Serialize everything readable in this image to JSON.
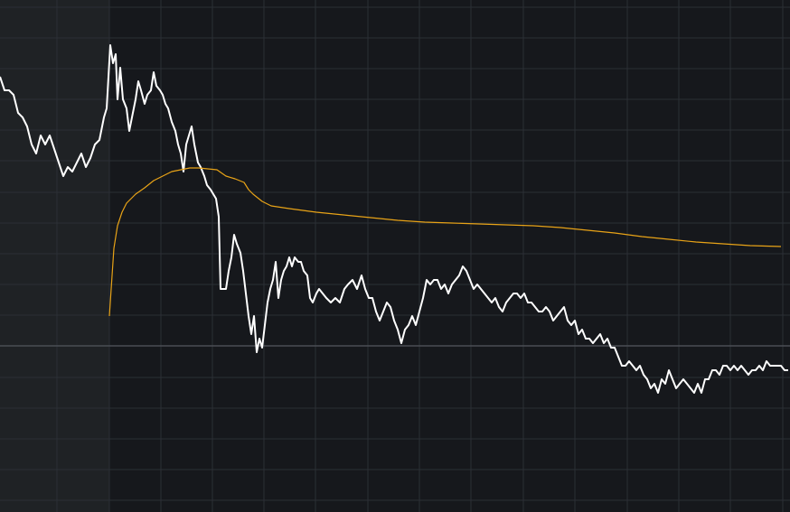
{
  "chart_data": {
    "type": "line",
    "xlim": [
      0,
      874
    ],
    "ylim": [
      -184,
      383
    ],
    "xticks": [
      63,
      121,
      178,
      235,
      292,
      349,
      407,
      464,
      521,
      579,
      636,
      694,
      751,
      808,
      866
    ],
    "yticks": [
      375,
      341,
      307,
      273,
      239,
      205,
      170,
      136,
      102,
      68,
      34,
      0,
      -35,
      -69,
      -103,
      -137,
      -171
    ],
    "grid": true,
    "reference_line": 0,
    "shade_xlim": [
      0,
      121
    ],
    "series": [
      {
        "color": "#ffffff",
        "x": [
          0,
          5,
          10,
          15,
          20,
          25,
          30,
          35,
          40,
          45,
          50,
          55,
          60,
          65,
          70,
          75,
          80,
          85,
          90,
          95,
          100,
          105,
          110,
          115,
          118,
          122,
          125,
          128,
          130,
          133,
          136,
          140,
          143,
          147,
          150,
          153,
          156,
          160,
          163,
          167,
          170,
          173,
          177,
          180,
          183,
          186,
          190,
          194,
          197,
          200,
          203,
          206,
          209,
          212,
          215,
          219,
          222,
          226,
          229,
          233,
          236,
          239,
          242,
          244,
          247,
          250,
          253,
          256,
          259,
          262,
          266,
          269,
          272,
          275,
          278,
          281,
          284,
          287,
          290,
          293,
          296,
          299,
          302,
          305,
          308,
          311,
          314,
          317,
          320,
          323,
          326,
          330,
          333,
          336,
          340,
          343,
          346,
          350,
          353,
          357,
          361,
          366,
          371,
          376,
          381,
          385,
          390,
          395,
          400,
          404,
          408,
          412,
          416,
          420,
          424,
          428,
          432,
          436,
          440,
          444,
          448,
          452,
          456,
          460,
          464,
          468,
          472,
          476,
          480,
          484,
          488,
          492,
          496,
          500,
          504,
          508,
          512,
          516,
          520,
          524,
          528,
          532,
          536,
          540,
          544,
          548,
          552,
          556,
          560,
          564,
          568,
          572,
          576,
          580,
          584,
          588,
          592,
          596,
          600,
          604,
          608,
          612,
          616,
          620,
          624,
          628,
          632,
          636,
          640,
          644,
          648,
          652,
          656,
          660,
          664,
          668,
          672,
          676,
          680,
          684,
          688,
          692,
          696,
          700,
          704,
          708,
          712,
          716,
          720,
          724,
          728,
          732,
          736,
          740,
          744,
          748,
          752,
          756,
          760,
          764,
          768,
          772,
          776,
          780,
          784,
          788,
          792,
          796,
          800,
          804,
          808,
          812,
          816,
          820,
          824,
          828,
          832,
          836,
          840,
          844,
          848,
          852,
          856,
          860,
          864,
          868,
          872
        ],
        "values": [
          298,
          283,
          283,
          278,
          258,
          253,
          243,
          223,
          213,
          233,
          223,
          233,
          218,
          203,
          188,
          198,
          193,
          203,
          213,
          198,
          208,
          223,
          228,
          253,
          263,
          333,
          313,
          323,
          273,
          308,
          273,
          263,
          238,
          258,
          273,
          293,
          283,
          268,
          278,
          283,
          303,
          288,
          283,
          278,
          268,
          263,
          248,
          238,
          223,
          213,
          193,
          223,
          233,
          243,
          223,
          203,
          198,
          188,
          178,
          173,
          168,
          163,
          143,
          63,
          63,
          63,
          83,
          98,
          123,
          113,
          103,
          83,
          58,
          33,
          13,
          33,
          -7,
          8,
          -2,
          23,
          48,
          63,
          73,
          93,
          53,
          73,
          83,
          88,
          98,
          88,
          98,
          93,
          93,
          83,
          78,
          53,
          48,
          58,
          63,
          58,
          53,
          48,
          53,
          48,
          63,
          68,
          73,
          63,
          78,
          63,
          53,
          53,
          38,
          28,
          38,
          48,
          43,
          28,
          18,
          3,
          18,
          23,
          33,
          23,
          38,
          53,
          73,
          68,
          73,
          73,
          63,
          68,
          58,
          68,
          73,
          78,
          88,
          83,
          73,
          63,
          68,
          63,
          58,
          53,
          48,
          53,
          43,
          38,
          48,
          53,
          58,
          58,
          53,
          58,
          48,
          48,
          43,
          38,
          38,
          43,
          38,
          28,
          33,
          38,
          43,
          28,
          23,
          28,
          13,
          18,
          8,
          8,
          3,
          8,
          13,
          3,
          8,
          -2,
          -2,
          -12,
          -22,
          -22,
          -17,
          -22,
          -27,
          -22,
          -32,
          -37,
          -47,
          -42,
          -52,
          -37,
          -42,
          -27,
          -37,
          -47,
          -42,
          -37,
          -42,
          -47,
          -52,
          -42,
          -52,
          -37,
          -37,
          -27,
          -27,
          -32,
          -22,
          -22,
          -27,
          -22,
          -27,
          -22,
          -27,
          -32,
          -27,
          -27,
          -22,
          -27,
          -17,
          -22,
          -22,
          -22,
          -22,
          -27,
          -27
        ]
      },
      {
        "color": "#e8a317",
        "x": [
          121,
          123,
          126,
          130,
          135,
          140,
          150,
          160,
          170,
          180,
          190,
          200,
          210,
          220,
          230,
          240,
          250,
          260,
          270,
          275,
          280,
          290,
          300,
          320,
          350,
          380,
          410,
          440,
          470,
          500,
          530,
          560,
          590,
          620,
          650,
          680,
          710,
          740,
          770,
          800,
          830,
          864
        ],
        "values": [
          33,
          63,
          108,
          133,
          148,
          158,
          168,
          175,
          183,
          188,
          193,
          195,
          197,
          197,
          196,
          195,
          188,
          185,
          181,
          173,
          168,
          160,
          155,
          152,
          148,
          145,
          142,
          139,
          137,
          136,
          135,
          134,
          133,
          131,
          128,
          125,
          121,
          118,
          115,
          113,
          111,
          110
        ]
      }
    ]
  }
}
